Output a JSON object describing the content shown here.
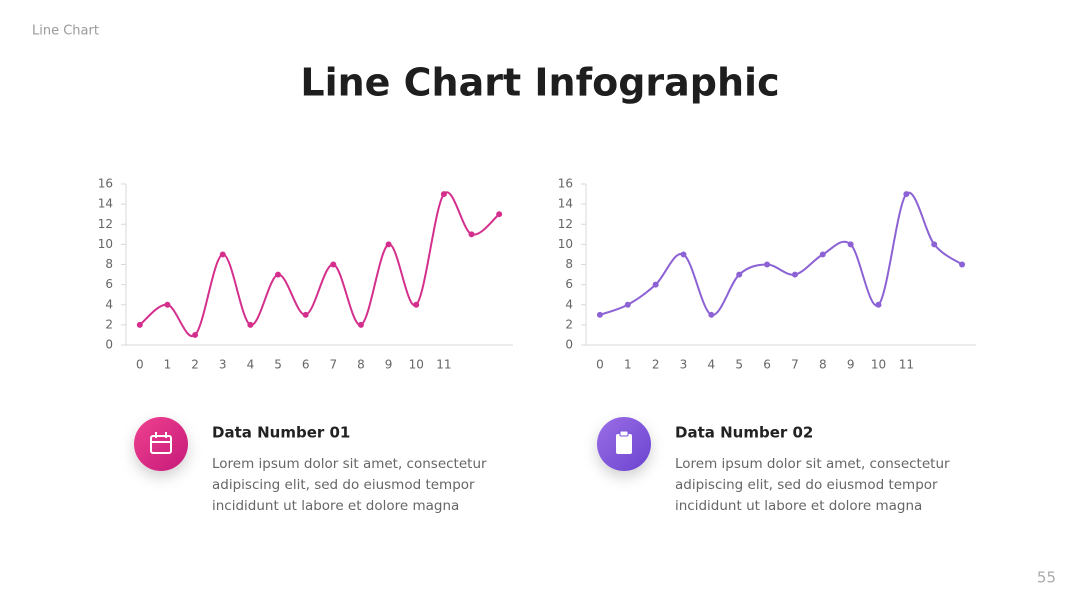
{
  "slide": {
    "label": "Line Chart",
    "title": "Line Chart Infographic",
    "page_number": "55",
    "cards": [
      {
        "heading": "Data Number 01",
        "body": [
          "Lorem ipsum dolor sit amet, consectetur",
          "adipiscing elit, sed do eiusmod tempor",
          "incididunt ut labore et dolore magna"
        ]
      },
      {
        "heading": "Data Number 02",
        "body": [
          "Lorem ipsum dolor sit amet, consectetur",
          "adipiscing elit, sed do eiusmod tempor",
          "incididunt ut labore et dolore magna"
        ]
      }
    ]
  },
  "chart_data": [
    {
      "type": "line",
      "categories": [
        "0",
        "1",
        "2",
        "3",
        "4",
        "5",
        "6",
        "7",
        "8",
        "9",
        "10",
        "11",
        null,
        null
      ],
      "values": [
        2,
        4,
        1,
        9,
        2,
        7,
        3,
        8,
        2,
        10,
        4,
        15,
        11,
        13
      ],
      "color": "#d42f8c",
      "ylim": [
        0,
        16
      ],
      "yticks": [
        0,
        2,
        4,
        6,
        8,
        10,
        12,
        14,
        16
      ]
    },
    {
      "type": "line",
      "categories": [
        "0",
        "1",
        "2",
        "3",
        "4",
        "5",
        "6",
        "7",
        "8",
        "9",
        "10",
        "11",
        null,
        null
      ],
      "values": [
        3,
        4,
        6,
        9,
        3,
        7,
        8,
        7,
        9,
        10,
        4,
        15,
        10,
        8
      ],
      "color": "#8c62d4",
      "ylim": [
        0,
        16
      ],
      "yticks": [
        0,
        2,
        4,
        6,
        8,
        10,
        12,
        14,
        16
      ]
    }
  ]
}
